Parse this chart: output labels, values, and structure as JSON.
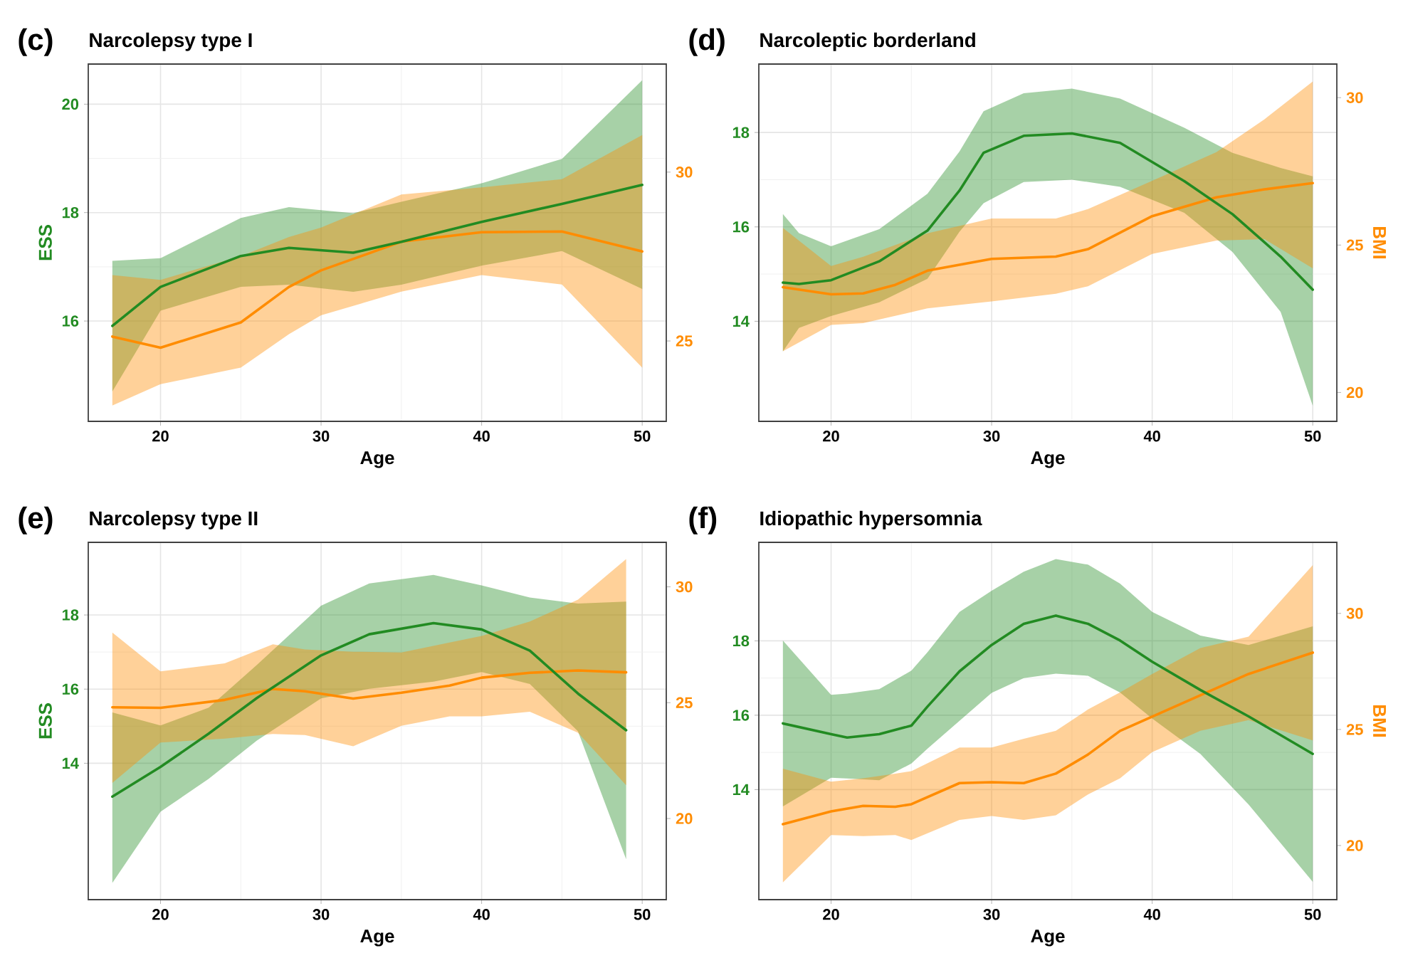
{
  "chart_data": [
    {
      "type": "line",
      "title": "Narcolepsy type I",
      "annotations": [
        "(c)"
      ],
      "xlabel": "Age",
      "ylabel": "ESS",
      "xlim": [
        15.5,
        51.5
      ],
      "xticks": [
        20,
        30,
        40,
        50
      ],
      "ylim": [
        14.15,
        20.74
      ],
      "yticks": [
        16,
        18,
        20
      ],
      "y2lim": [
        22.62,
        33.2
      ],
      "y2ticks": [
        25,
        30
      ],
      "grid": true,
      "series": [
        {
          "color": "#228b22",
          "x": [
            17,
            20,
            25,
            28,
            32,
            35,
            40,
            45,
            50
          ],
          "values": [
            15.91,
            16.63,
            17.2,
            17.35,
            17.26,
            17.46,
            17.83,
            18.16,
            18.51
          ],
          "lower": [
            14.7,
            16.19,
            16.63,
            16.67,
            16.54,
            16.67,
            17.02,
            17.29,
            16.59
          ],
          "upper": [
            17.11,
            17.16,
            17.9,
            18.1,
            17.99,
            18.2,
            18.54,
            18.99,
            20.44
          ]
        },
        {
          "color": "#ff8c00",
          "axis": "y2",
          "x": [
            17,
            20,
            25,
            28,
            30,
            35,
            40,
            45,
            50
          ],
          "values": [
            25.13,
            24.8,
            25.55,
            26.6,
            27.09,
            27.94,
            28.22,
            28.24,
            27.65
          ],
          "lower": [
            23.09,
            23.72,
            24.21,
            25.2,
            25.76,
            26.46,
            26.95,
            26.67,
            24.21
          ],
          "upper": [
            26.95,
            26.81,
            27.51,
            28.08,
            28.36,
            29.34,
            29.55,
            29.79,
            31.1
          ]
        }
      ]
    },
    {
      "type": "line",
      "title": "Narcoleptic borderland",
      "annotations": [
        "(d)"
      ],
      "xlabel": "Age",
      "y2label": "BMI",
      "xlim": [
        15.5,
        51.5
      ],
      "xticks": [
        20,
        30,
        40,
        50
      ],
      "ylim": [
        11.88,
        19.45
      ],
      "yticks": [
        14,
        16,
        18
      ],
      "y2lim": [
        19.02,
        31.14
      ],
      "y2ticks": [
        20,
        25,
        30
      ],
      "grid": true,
      "series": [
        {
          "color": "#228b22",
          "x": [
            17,
            18,
            20,
            23,
            26,
            28,
            29.5,
            32,
            35,
            38,
            42,
            45,
            48,
            50
          ],
          "values": [
            14.82,
            14.79,
            14.87,
            15.27,
            15.92,
            16.77,
            17.57,
            17.93,
            17.98,
            17.78,
            16.97,
            16.27,
            15.37,
            14.67
          ],
          "lower": [
            13.36,
            13.86,
            14.11,
            14.4,
            14.9,
            15.9,
            16.5,
            16.95,
            17.0,
            16.85,
            16.3,
            15.47,
            14.2,
            12.21
          ],
          "upper": [
            16.27,
            15.87,
            15.59,
            15.95,
            16.7,
            17.6,
            18.45,
            18.83,
            18.93,
            18.72,
            18.1,
            17.57,
            17.25,
            17.07
          ]
        },
        {
          "color": "#ff8c00",
          "axis": "y2",
          "x": [
            17,
            20,
            22,
            24,
            26,
            30,
            34,
            36,
            40,
            44,
            47,
            50
          ],
          "values": [
            23.57,
            23.33,
            23.36,
            23.65,
            24.13,
            24.53,
            24.61,
            24.86,
            25.98,
            26.62,
            26.89,
            27.1
          ],
          "lower": [
            21.4,
            22.29,
            22.35,
            22.6,
            22.85,
            23.09,
            23.35,
            23.6,
            24.7,
            25.15,
            25.2,
            24.21
          ],
          "upper": [
            25.58,
            24.29,
            24.6,
            25.0,
            25.4,
            25.9,
            25.9,
            26.22,
            27.18,
            28.15,
            29.27,
            30.55
          ]
        }
      ]
    },
    {
      "type": "line",
      "title": "Narcolepsy type II",
      "annotations": [
        "(e)"
      ],
      "xlabel": "Age",
      "ylabel": "ESS",
      "xlim": [
        15.5,
        51.5
      ],
      "xticks": [
        20,
        30,
        40,
        50
      ],
      "ylim": [
        10.32,
        19.96
      ],
      "yticks": [
        14,
        16,
        18
      ],
      "y2lim": [
        16.5,
        31.92
      ],
      "y2ticks": [
        20,
        25,
        30
      ],
      "grid": true,
      "series": [
        {
          "color": "#228b22",
          "x": [
            17,
            20,
            23,
            26,
            30,
            33,
            37,
            40,
            43,
            46,
            49
          ],
          "values": [
            13.1,
            13.9,
            14.8,
            15.76,
            16.91,
            17.48,
            17.78,
            17.61,
            17.04,
            15.88,
            14.89
          ],
          "lower": [
            10.77,
            12.69,
            13.58,
            14.61,
            15.75,
            16.01,
            16.2,
            16.46,
            16.14,
            14.86,
            11.41
          ],
          "upper": [
            15.37,
            15.02,
            15.5,
            16.65,
            18.25,
            18.85,
            19.08,
            18.8,
            18.47,
            18.31,
            18.36
          ]
        },
        {
          "color": "#ff8c00",
          "axis": "y2",
          "x": [
            17,
            20,
            24,
            27,
            29,
            32,
            35,
            38,
            40,
            43,
            46,
            49
          ],
          "values": [
            24.8,
            24.78,
            25.12,
            25.59,
            25.49,
            25.18,
            25.43,
            25.74,
            26.08,
            26.29,
            26.39,
            26.31
          ],
          "lower": [
            21.54,
            23.28,
            23.45,
            23.65,
            23.6,
            23.12,
            24.0,
            24.41,
            24.41,
            24.61,
            23.7,
            21.44
          ],
          "upper": [
            28.03,
            26.35,
            26.7,
            27.52,
            27.3,
            27.2,
            27.17,
            27.6,
            27.88,
            28.5,
            29.45,
            31.2
          ]
        }
      ]
    },
    {
      "type": "line",
      "title": "Idiopathic hypersomnia",
      "annotations": [
        "(f)"
      ],
      "xlabel": "Age",
      "y2label": "BMI",
      "xlim": [
        15.5,
        51.5
      ],
      "xticks": [
        20,
        30,
        40,
        50
      ],
      "ylim": [
        11.04,
        20.65
      ],
      "yticks": [
        14,
        16,
        18
      ],
      "y2lim": [
        17.67,
        33.06
      ],
      "y2ticks": [
        20,
        25,
        30
      ],
      "grid": true,
      "series": [
        {
          "color": "#228b22",
          "x": [
            17,
            20,
            21,
            23,
            25,
            26,
            28,
            30,
            32,
            34,
            36,
            38,
            40,
            43,
            46,
            50
          ],
          "values": [
            15.78,
            15.49,
            15.4,
            15.49,
            15.72,
            16.23,
            17.18,
            17.89,
            18.46,
            18.68,
            18.46,
            18.01,
            17.44,
            16.68,
            15.97,
            14.96
          ],
          "lower": [
            13.55,
            14.32,
            14.3,
            14.25,
            14.7,
            15.1,
            15.85,
            16.6,
            17.0,
            17.12,
            17.06,
            16.61,
            15.91,
            14.96,
            13.6,
            11.52
          ],
          "upper": [
            18.01,
            16.55,
            16.58,
            16.7,
            17.2,
            17.69,
            18.78,
            19.35,
            19.86,
            20.2,
            20.05,
            19.54,
            18.78,
            18.14,
            17.89,
            18.39
          ]
        },
        {
          "color": "#ff8c00",
          "axis": "y2",
          "x": [
            17,
            20,
            22,
            24,
            25,
            28,
            30,
            32,
            34,
            36,
            38,
            40,
            43,
            46,
            50
          ],
          "values": [
            20.92,
            21.47,
            21.71,
            21.67,
            21.78,
            22.69,
            22.73,
            22.69,
            23.1,
            23.92,
            24.94,
            25.55,
            26.47,
            27.39,
            28.31
          ],
          "lower": [
            18.41,
            20.45,
            20.41,
            20.45,
            20.24,
            21.1,
            21.27,
            21.1,
            21.3,
            22.2,
            22.9,
            24.02,
            24.94,
            25.4,
            24.53
          ],
          "upper": [
            23.31,
            22.75,
            22.9,
            23.1,
            23.2,
            24.22,
            24.22,
            24.6,
            24.94,
            25.86,
            26.6,
            27.39,
            28.51,
            29.0,
            32.08
          ]
        }
      ]
    }
  ]
}
